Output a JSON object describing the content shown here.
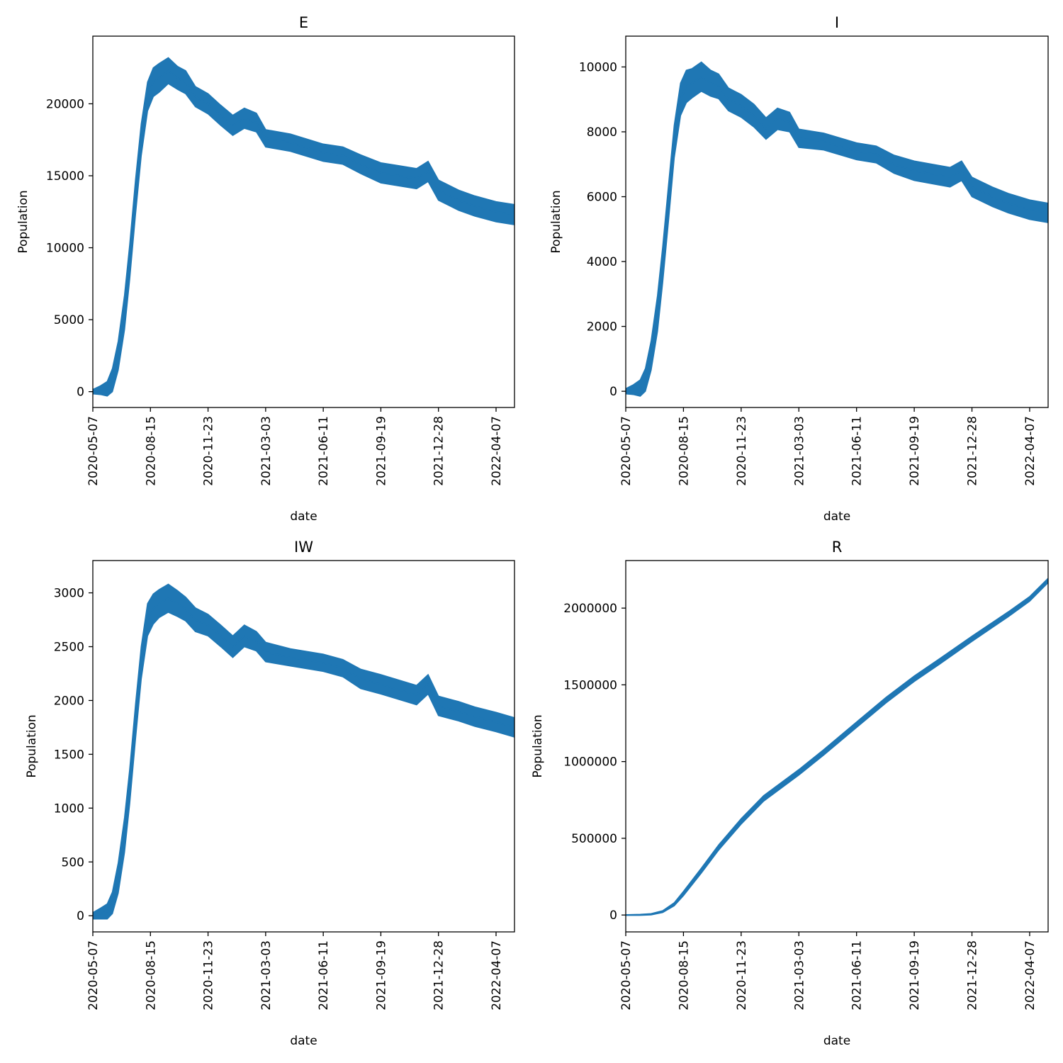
{
  "chart_data": [
    {
      "type": "line",
      "title": "E",
      "xlabel": "date",
      "ylabel": "Population",
      "x_ticks": [
        "2020-05-07",
        "2020-08-15",
        "2020-11-23",
        "2021-03-03",
        "2021-06-11",
        "2021-09-19",
        "2021-12-28",
        "2022-04-07"
      ],
      "xlim": [
        "2020-05-07",
        "2022-05-09"
      ],
      "y_ticks": [
        0,
        5000,
        10000,
        15000,
        20000
      ],
      "ylim": [
        -1100,
        24700
      ],
      "grid": false,
      "color": "#1f77b4",
      "series": [
        {
          "x": [
            "2020-05-07",
            "2020-05-20",
            "2020-06-01",
            "2020-06-10",
            "2020-06-20",
            "2020-07-01",
            "2020-07-10",
            "2020-07-20",
            "2020-07-30",
            "2020-08-10",
            "2020-08-20",
            "2020-08-30",
            "2020-09-15",
            "2020-10-01",
            "2020-10-15",
            "2020-11-01",
            "2020-11-23",
            "2020-12-15",
            "2021-01-05",
            "2021-01-25",
            "2021-02-15",
            "2021-03-03",
            "2021-04-15",
            "2021-06-11",
            "2021-07-15",
            "2021-08-15",
            "2021-09-19",
            "2021-10-20",
            "2021-11-20",
            "2021-12-10",
            "2021-12-28",
            "2022-02-01",
            "2022-03-01",
            "2022-04-07",
            "2022-05-09"
          ],
          "y": [
            0,
            100,
            200,
            800,
            2500,
            5500,
            9000,
            13500,
            17500,
            20500,
            21500,
            21800,
            22300,
            21800,
            21500,
            20500,
            20000,
            19200,
            18500,
            19000,
            18700,
            17600,
            17300,
            16600,
            16400,
            15800,
            15200,
            15000,
            14800,
            15300,
            14000,
            13300,
            12900,
            12500,
            12300
          ],
          "band": [
            150,
            300,
            500,
            800,
            1000,
            1200,
            1200,
            1200,
            1100,
            1000,
            1000,
            1000,
            900,
            800,
            800,
            700,
            700,
            700,
            700,
            700,
            650,
            600,
            600,
            600,
            600,
            650,
            700,
            700,
            700,
            700,
            700,
            700,
            700,
            700,
            700
          ]
        }
      ]
    },
    {
      "type": "line",
      "title": "I",
      "xlabel": "date",
      "ylabel": "Population",
      "x_ticks": [
        "2020-05-07",
        "2020-08-15",
        "2020-11-23",
        "2021-03-03",
        "2021-06-11",
        "2021-09-19",
        "2021-12-28",
        "2022-04-07"
      ],
      "xlim": [
        "2020-05-07",
        "2022-05-09"
      ],
      "y_ticks": [
        0,
        2000,
        4000,
        6000,
        8000,
        10000
      ],
      "ylim": [
        -500,
        10950
      ],
      "grid": false,
      "color": "#1f77b4",
      "series": [
        {
          "x": [
            "2020-05-07",
            "2020-05-20",
            "2020-06-01",
            "2020-06-10",
            "2020-06-20",
            "2020-07-01",
            "2020-07-10",
            "2020-07-20",
            "2020-07-30",
            "2020-08-10",
            "2020-08-20",
            "2020-08-30",
            "2020-09-15",
            "2020-10-01",
            "2020-10-15",
            "2020-11-01",
            "2020-11-23",
            "2020-12-15",
            "2021-01-05",
            "2021-01-25",
            "2021-02-15",
            "2021-03-03",
            "2021-04-15",
            "2021-06-11",
            "2021-07-15",
            "2021-08-15",
            "2021-09-19",
            "2021-10-20",
            "2021-11-20",
            "2021-12-10",
            "2021-12-28",
            "2022-02-01",
            "2022-03-01",
            "2022-04-07",
            "2022-05-09"
          ],
          "y": [
            0,
            50,
            100,
            350,
            1100,
            2400,
            3900,
            5800,
            7700,
            9000,
            9400,
            9500,
            9700,
            9500,
            9400,
            9000,
            8800,
            8500,
            8100,
            8400,
            8300,
            7800,
            7700,
            7400,
            7300,
            7000,
            6800,
            6700,
            6600,
            6800,
            6300,
            6000,
            5800,
            5600,
            5500
          ],
          "band": [
            80,
            150,
            250,
            350,
            450,
            550,
            550,
            550,
            500,
            500,
            500,
            450,
            450,
            400,
            380,
            350,
            350,
            350,
            330,
            330,
            300,
            280,
            260,
            260,
            260,
            280,
            300,
            300,
            300,
            300,
            300,
            300,
            300,
            300,
            300
          ]
        }
      ]
    },
    {
      "type": "line",
      "title": "IW",
      "xlabel": "date",
      "ylabel": "Population",
      "x_ticks": [
        "2020-05-07",
        "2020-08-15",
        "2020-11-23",
        "2021-03-03",
        "2021-06-11",
        "2021-09-19",
        "2021-12-28",
        "2022-04-07"
      ],
      "xlim": [
        "2020-05-07",
        "2022-05-09"
      ],
      "y_ticks": [
        0,
        500,
        1000,
        1500,
        2000,
        2500,
        3000
      ],
      "ylim": [
        -150,
        3300
      ],
      "grid": false,
      "color": "#1f77b4",
      "series": [
        {
          "x": [
            "2020-05-07",
            "2020-05-20",
            "2020-06-01",
            "2020-06-10",
            "2020-06-20",
            "2020-07-01",
            "2020-07-10",
            "2020-07-20",
            "2020-07-30",
            "2020-08-10",
            "2020-08-20",
            "2020-08-30",
            "2020-09-15",
            "2020-10-01",
            "2020-10-15",
            "2020-11-01",
            "2020-11-23",
            "2020-12-15",
            "2021-01-05",
            "2021-01-25",
            "2021-02-15",
            "2021-03-03",
            "2021-04-15",
            "2021-06-11",
            "2021-07-15",
            "2021-08-15",
            "2021-09-19",
            "2021-10-20",
            "2021-11-20",
            "2021-12-10",
            "2021-12-28",
            "2022-02-01",
            "2022-03-01",
            "2022-04-07",
            "2022-05-09"
          ],
          "y": [
            0,
            20,
            40,
            120,
            350,
            750,
            1200,
            1800,
            2350,
            2750,
            2850,
            2900,
            2950,
            2900,
            2850,
            2750,
            2700,
            2600,
            2500,
            2600,
            2550,
            2450,
            2400,
            2350,
            2300,
            2200,
            2150,
            2100,
            2050,
            2150,
            1950,
            1900,
            1850,
            1800,
            1750
          ],
          "band": [
            30,
            50,
            70,
            100,
            140,
            160,
            160,
            160,
            150,
            150,
            140,
            130,
            130,
            120,
            110,
            110,
            100,
            100,
            100,
            100,
            90,
            90,
            80,
            80,
            80,
            90,
            90,
            90,
            90,
            90,
            90,
            90,
            90,
            90,
            90
          ]
        }
      ]
    },
    {
      "type": "line",
      "title": "R",
      "xlabel": "date",
      "ylabel": "Population",
      "x_ticks": [
        "2020-05-07",
        "2020-08-15",
        "2020-11-23",
        "2021-03-03",
        "2021-06-11",
        "2021-09-19",
        "2021-12-28",
        "2022-04-07"
      ],
      "xlim": [
        "2020-05-07",
        "2022-05-09"
      ],
      "y_ticks": [
        0,
        500000,
        1000000,
        1500000,
        2000000
      ],
      "ylim": [
        -110000,
        2310000
      ],
      "grid": false,
      "color": "#1f77b4",
      "series": [
        {
          "x": [
            "2020-05-07",
            "2020-06-01",
            "2020-06-20",
            "2020-07-10",
            "2020-07-30",
            "2020-08-15",
            "2020-09-15",
            "2020-10-15",
            "2020-11-23",
            "2021-01-01",
            "2021-03-03",
            "2021-04-15",
            "2021-06-11",
            "2021-08-01",
            "2021-09-19",
            "2021-11-01",
            "2021-12-28",
            "2022-03-01",
            "2022-04-07",
            "2022-05-09"
          ],
          "y": [
            0,
            1000,
            5000,
            22000,
            70000,
            140000,
            290000,
            440000,
            610000,
            760000,
            930000,
            1060000,
            1240000,
            1400000,
            1540000,
            1650000,
            1800000,
            1960000,
            2060000,
            2180000
          ],
          "band": [
            2000,
            3000,
            4000,
            6000,
            10000,
            14000,
            16000,
            17000,
            18000,
            18000,
            18000,
            18000,
            18000,
            18000,
            18000,
            18000,
            17000,
            16000,
            15000,
            14000
          ]
        }
      ]
    }
  ]
}
